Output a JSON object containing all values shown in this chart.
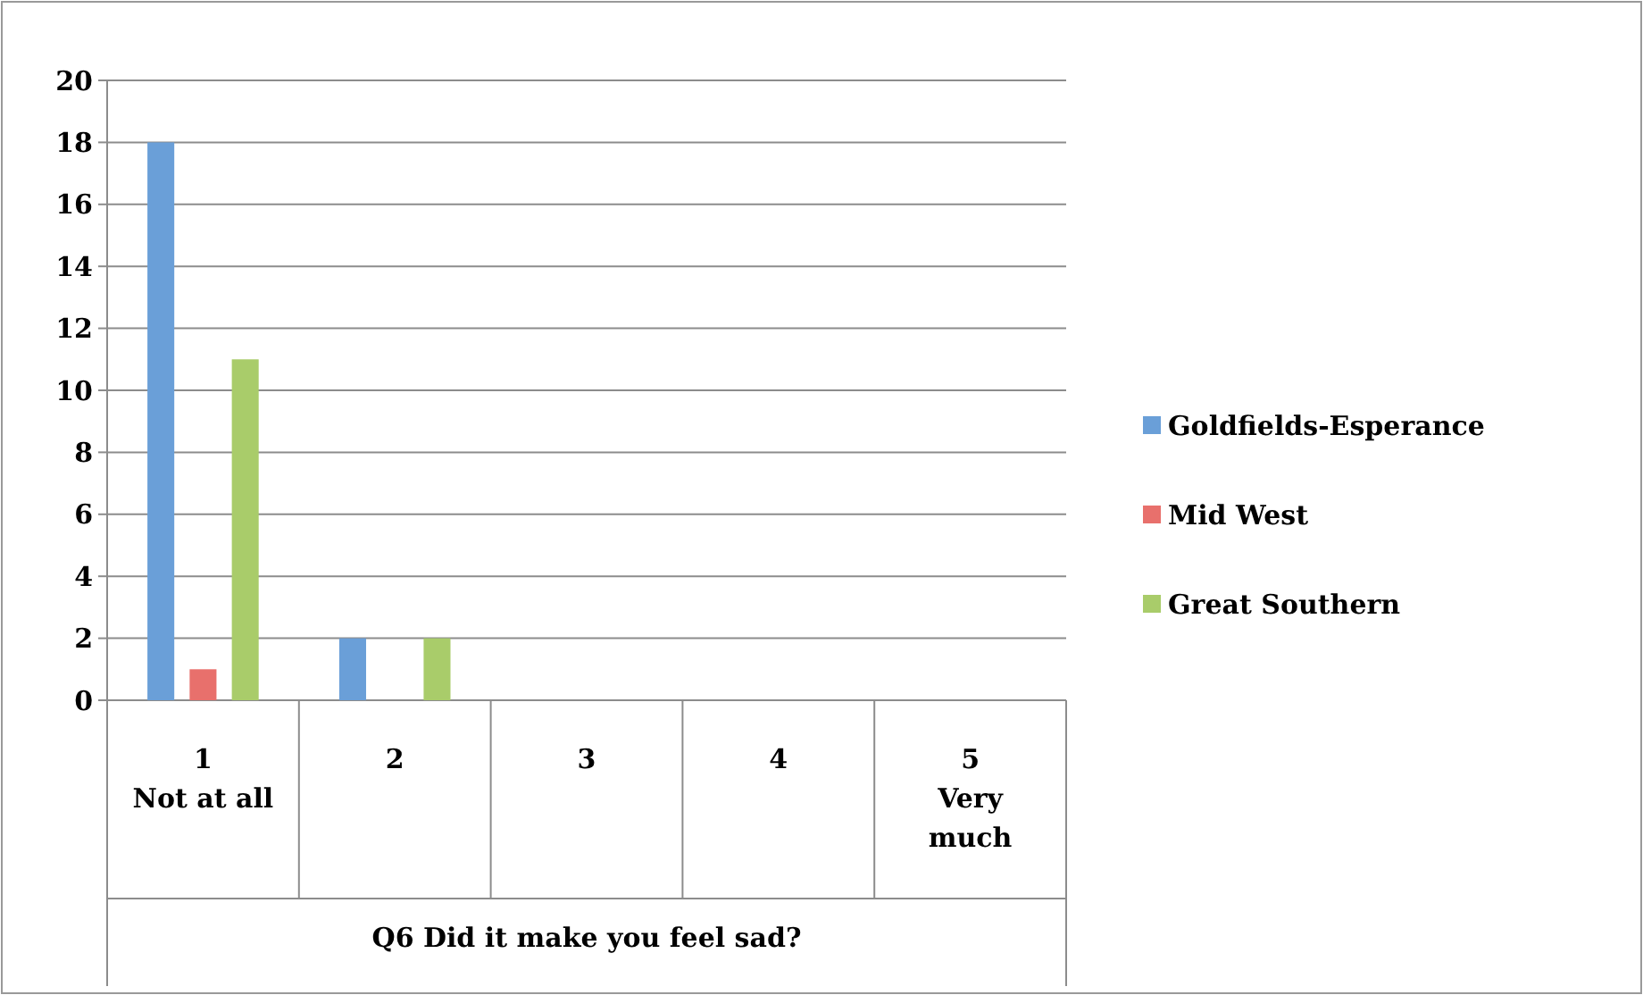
{
  "chart_data": {
    "type": "bar",
    "xlabel": "Q6 Did it make you feel sad?",
    "categories": [
      "1\nNot at all",
      "2",
      "3",
      "4",
      "5\nVery\nmuch"
    ],
    "series": [
      {
        "name": "Goldfields-Esperance",
        "color": "#6a9fd8",
        "values": [
          18,
          2,
          0,
          0,
          0
        ]
      },
      {
        "name": "Mid West",
        "color": "#e8706c",
        "values": [
          1,
          0,
          0,
          0,
          0
        ]
      },
      {
        "name": "Great Southern",
        "color": "#a9cc6a",
        "values": [
          11,
          2,
          0,
          0,
          0
        ]
      }
    ],
    "ylim": [
      0,
      20
    ],
    "yticks": [
      0,
      2,
      4,
      6,
      8,
      10,
      12,
      14,
      16,
      18,
      20
    ],
    "grid": "y",
    "legend": "right"
  }
}
